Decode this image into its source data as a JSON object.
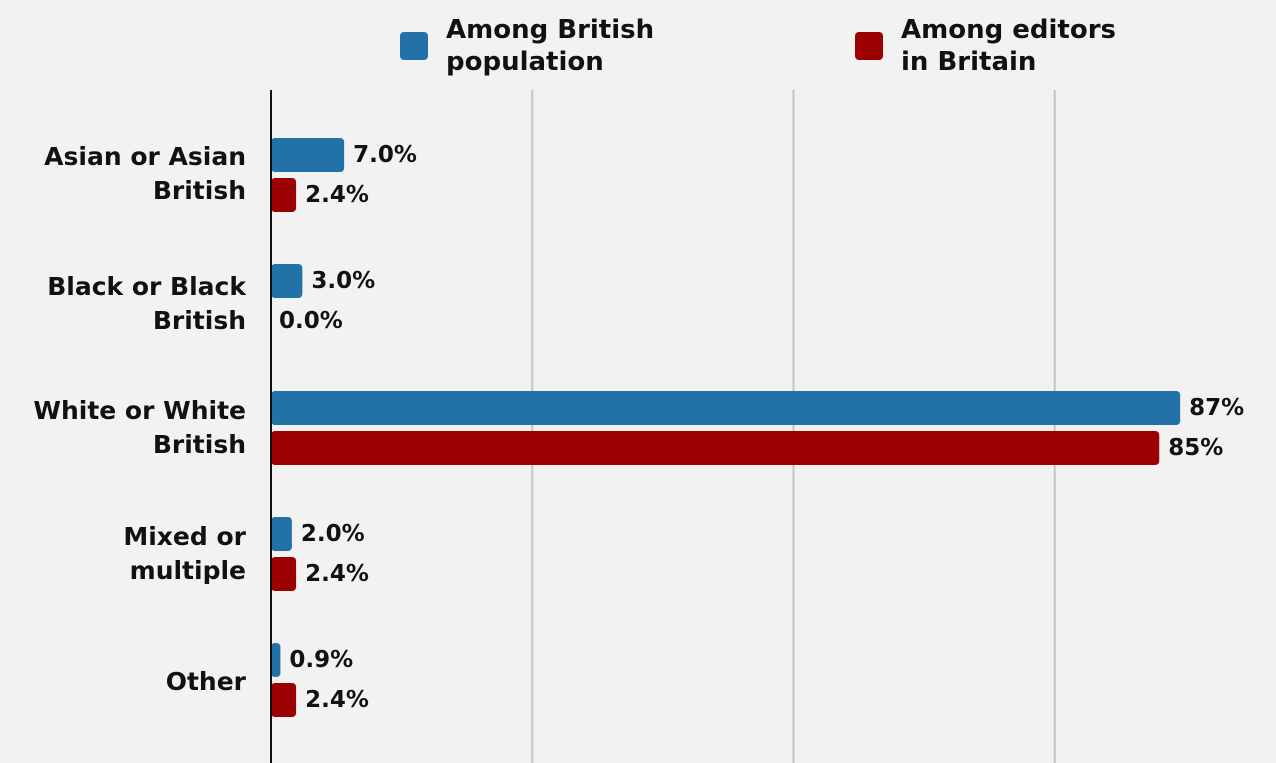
{
  "chart_data": {
    "type": "bar",
    "orientation": "horizontal",
    "title": "",
    "xlabel": "",
    "ylabel": "",
    "xlim": [
      0,
      100
    ],
    "grid": true,
    "legend_position": "top",
    "categories": [
      "Asian or Asian British",
      "Black or Black British",
      "White or White British",
      "Mixed or multiple",
      "Other"
    ],
    "series": [
      {
        "name": "Among British population",
        "color": "#2272a7",
        "values": [
          7.0,
          3.0,
          87,
          2.0,
          0.9
        ],
        "labels": [
          "7.0%",
          "3.0%",
          "87%",
          "2.0%",
          "0.9%"
        ]
      },
      {
        "name": "Among editors in Britain",
        "color": "#9b0101",
        "values": [
          2.4,
          0.0,
          85,
          2.4,
          2.4
        ],
        "labels": [
          "2.4%",
          "0.0%",
          "85%",
          "2.4%",
          "2.4%"
        ]
      }
    ]
  }
}
